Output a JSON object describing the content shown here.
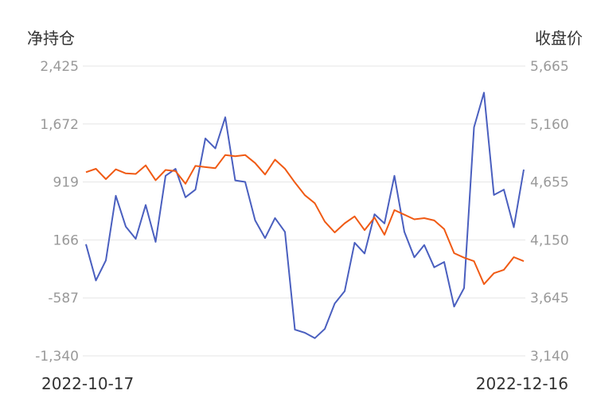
{
  "chart_data": {
    "type": "line",
    "left_axis_title": "净持仓",
    "right_axis_title": "收盘价",
    "left_ticks": [
      "2,425",
      "1,672",
      "919",
      "166",
      "-587",
      "-1,340"
    ],
    "right_ticks": [
      "5,665",
      "5,160",
      "4,655",
      "4,150",
      "3,645",
      "3,140"
    ],
    "left_range": [
      -1340,
      2425
    ],
    "right_range": [
      3140,
      5665
    ],
    "grid": true,
    "x_start_label": "2022-10-17",
    "x_end_label": "2022-12-16",
    "series": [
      {
        "axis": "left",
        "color": "#4a5fbf",
        "values": [
          110,
          -360,
          -100,
          740,
          340,
          180,
          620,
          140,
          1000,
          1090,
          720,
          820,
          1485,
          1355,
          1760,
          940,
          920,
          420,
          190,
          450,
          270,
          -1000,
          -1040,
          -1110,
          -990,
          -660,
          -500,
          130,
          -10,
          500,
          380,
          1000,
          270,
          -60,
          100,
          -190,
          -120,
          -700,
          -460,
          1630,
          2080,
          750,
          820,
          330,
          1080
        ]
      },
      {
        "axis": "right",
        "color": "#f05a14",
        "values": [
          4740,
          4770,
          4680,
          4765,
          4730,
          4725,
          4800,
          4670,
          4760,
          4750,
          4640,
          4795,
          4785,
          4775,
          4890,
          4880,
          4890,
          4820,
          4720,
          4850,
          4770,
          4650,
          4540,
          4470,
          4310,
          4215,
          4295,
          4355,
          4235,
          4345,
          4195,
          4410,
          4370,
          4330,
          4340,
          4320,
          4245,
          4035,
          3995,
          3965,
          3765,
          3860,
          3890,
          4000,
          3965
        ]
      }
    ]
  }
}
